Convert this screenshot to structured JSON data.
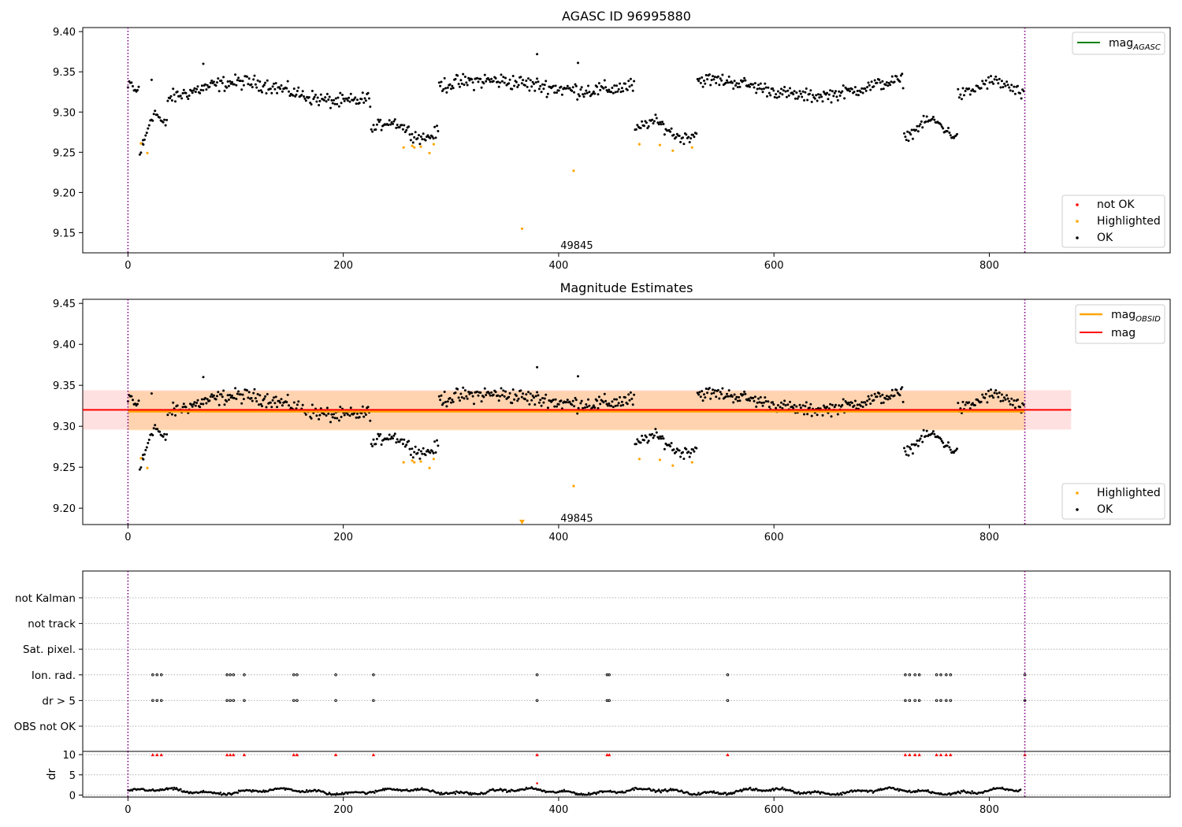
{
  "figure": {
    "title": "AGASC ID 96995880"
  },
  "chart_data": [
    {
      "type": "scatter",
      "title": "AGASC ID 96995880",
      "xlim": [
        -42,
        968
      ],
      "ylim": [
        9.125,
        9.405
      ],
      "xticks": [
        0,
        200,
        400,
        600,
        800
      ],
      "yticks": [
        9.15,
        9.2,
        9.25,
        9.3,
        9.35,
        9.4
      ],
      "ytick_labels": [
        "9.15",
        "9.20",
        "9.25",
        "9.30",
        "9.35",
        "9.40"
      ],
      "vlines": [
        0,
        833
      ],
      "annotation": {
        "text": "49845",
        "x": 400,
        "y": 9.135
      },
      "legend_top": [
        {
          "name": "mag",
          "sub": "AGASC",
          "color": "#008000",
          "kind": "line"
        }
      ],
      "legend_bottom": [
        {
          "name": "not OK",
          "color": "#ff0000",
          "kind": "dot"
        },
        {
          "name": "Highlighted",
          "color": "#ffa500",
          "kind": "dot"
        },
        {
          "name": "OK",
          "color": "#000000",
          "kind": "dot"
        }
      ],
      "series": [
        {
          "name": "OK",
          "color": "#000000",
          "segments": [
            {
              "x0": 0,
              "x1": 10,
              "n": 10,
              "base": 9.33,
              "amp": 0.005,
              "noise": 0.007
            },
            {
              "x0": 11,
              "x1": 36,
              "n": 24,
              "base": 9.265,
              "amp": 0.015,
              "noise": 0.01,
              "slope": 0.035
            },
            {
              "x0": 37,
              "x1": 225,
              "n": 190,
              "base": 9.325,
              "amp": 0.012,
              "noise": 0.011
            },
            {
              "x0": 226,
              "x1": 288,
              "n": 60,
              "base": 9.278,
              "amp": 0.01,
              "noise": 0.009
            },
            {
              "x0": 289,
              "x1": 470,
              "n": 180,
              "base": 9.333,
              "amp": 0.006,
              "noise": 0.012
            },
            {
              "x0": 471,
              "x1": 528,
              "n": 55,
              "base": 9.278,
              "amp": 0.01,
              "noise": 0.009
            },
            {
              "x0": 529,
              "x1": 720,
              "n": 190,
              "base": 9.33,
              "amp": 0.01,
              "noise": 0.01
            },
            {
              "x0": 721,
              "x1": 770,
              "n": 50,
              "base": 9.28,
              "amp": 0.01,
              "noise": 0.008
            },
            {
              "x0": 771,
              "x1": 832,
              "n": 55,
              "base": 9.33,
              "amp": 0.008,
              "noise": 0.01
            }
          ],
          "points": [
            [
              70,
              9.36
            ],
            [
              380,
              9.372
            ],
            [
              418,
              9.361
            ],
            [
              14,
              9.265
            ],
            [
              22,
              9.34
            ]
          ]
        },
        {
          "name": "Highlighted",
          "color": "#ffa500",
          "points": [
            [
              12,
              9.261
            ],
            [
              18,
              9.249
            ],
            [
              256,
              9.256
            ],
            [
              264,
              9.258
            ],
            [
              266,
              9.256
            ],
            [
              272,
              9.257
            ],
            [
              280,
              9.249
            ],
            [
              284,
              9.26
            ],
            [
              366,
              9.155
            ],
            [
              414,
              9.227
            ],
            [
              475,
              9.26
            ],
            [
              494,
              9.259
            ],
            [
              506,
              9.252
            ],
            [
              524,
              9.256
            ]
          ]
        }
      ]
    },
    {
      "type": "scatter",
      "title": "Magnitude Estimates",
      "xlim": [
        -42,
        968
      ],
      "ylim": [
        9.18,
        9.455
      ],
      "xticks": [
        0,
        200,
        400,
        600,
        800
      ],
      "yticks": [
        9.2,
        9.25,
        9.3,
        9.35,
        9.4,
        9.45
      ],
      "ytick_labels": [
        "9.20",
        "9.25",
        "9.30",
        "9.35",
        "9.40",
        "9.45"
      ],
      "vlines": [
        0,
        833
      ],
      "annotation": {
        "text": "49845",
        "x": 400,
        "y": 9.188
      },
      "mag_line": {
        "y": 9.32,
        "x0": -42,
        "x1": 876,
        "color": "#ff0000"
      },
      "mag_band": {
        "y0": 9.296,
        "y1": 9.344,
        "x0": -42,
        "x1": 876
      },
      "mag_obsid": {
        "y": 9.318,
        "x0": 0,
        "x1": 833,
        "color": "#ffa500",
        "band_y0": 9.295,
        "band_y1": 9.343
      },
      "legend_top": [
        {
          "name": "mag",
          "sub": "OBSID",
          "color": "#ffa500",
          "kind": "line"
        },
        {
          "name": "mag",
          "sub": "",
          "color": "#ff0000",
          "kind": "line"
        }
      ],
      "legend_bottom": [
        {
          "name": "Highlighted",
          "color": "#ffa500",
          "kind": "dot"
        },
        {
          "name": "OK",
          "color": "#000000",
          "kind": "dot"
        }
      ],
      "highlight_marker": {
        "x": 366,
        "y": 9.183
      }
    },
    {
      "type": "scatter",
      "title": "",
      "xlim": [
        -42,
        968
      ],
      "flag_labels": [
        "not Kalman",
        "not track",
        "Sat. pixel.",
        "Ion. rad.",
        "dr > 5",
        "OBS not OK"
      ],
      "flag_points": {
        "Ion. rad.": [
          23,
          27,
          31,
          92,
          95,
          98,
          108,
          154,
          157,
          193,
          228,
          380,
          445,
          447,
          557,
          722,
          726,
          731,
          735,
          751,
          755,
          760,
          764,
          833
        ],
        "dr > 5": [
          23,
          27,
          31,
          92,
          95,
          98,
          108,
          154,
          157,
          193,
          228,
          380,
          445,
          447,
          557,
          722,
          726,
          731,
          735,
          751,
          755,
          760,
          764,
          833
        ]
      },
      "vlines": [
        0,
        833
      ]
    },
    {
      "type": "scatter",
      "title": "",
      "xlim": [
        -42,
        968
      ],
      "ylim": [
        -0.5,
        10.8
      ],
      "xticks": [
        0,
        200,
        400,
        600,
        800
      ],
      "yticks": [
        0,
        5,
        10
      ],
      "ytick_labels": [
        "0",
        "5",
        "10"
      ],
      "ylabel": "dr",
      "vlines": [
        0,
        833
      ],
      "clipped_points": [
        23,
        27,
        31,
        92,
        95,
        98,
        108,
        154,
        157,
        193,
        228,
        380,
        445,
        447,
        557,
        722,
        726,
        731,
        735,
        751,
        755,
        760,
        764,
        833
      ],
      "outlier_points": [
        [
          380,
          2.9
        ]
      ]
    }
  ]
}
